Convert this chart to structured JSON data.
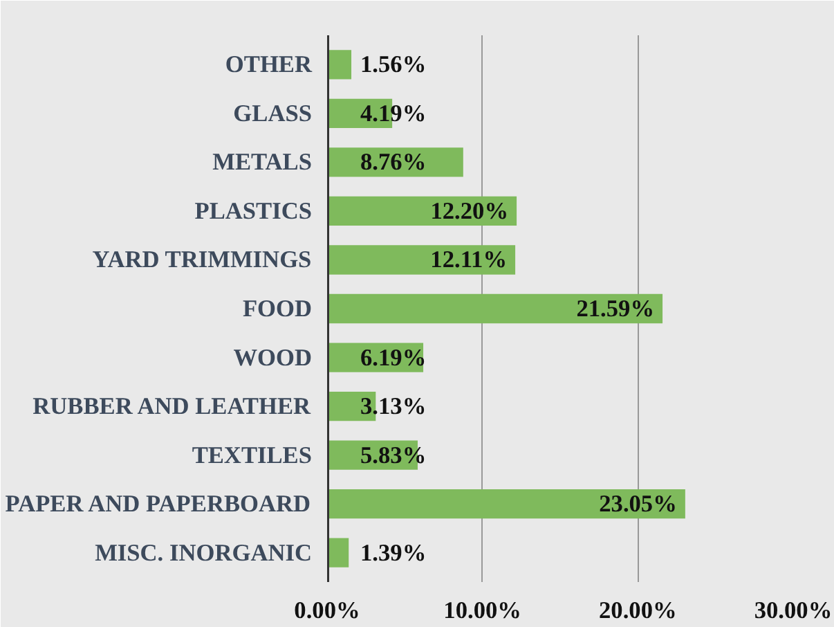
{
  "chart_data": {
    "type": "bar",
    "orientation": "horizontal",
    "categories": [
      "OTHER",
      "GLASS",
      "METALS",
      "PLASTICS",
      "YARD TRIMMINGS",
      "FOOD",
      "WOOD",
      "RUBBER AND LEATHER",
      "TEXTILES",
      "PAPER AND PAPERBOARD",
      "MISC. INORGANIC"
    ],
    "values": [
      1.56,
      4.19,
      8.76,
      12.2,
      12.11,
      21.59,
      6.19,
      3.13,
      5.83,
      23.05,
      1.39
    ],
    "value_labels": [
      "1.56%",
      "4.19%",
      "8.76%",
      "12.20%",
      "12.11%",
      "21.59%",
      "6.19%",
      "3.13%",
      "5.83%",
      "23.05%",
      "1.39%"
    ],
    "color": "#7fba5c",
    "xlim": [
      0,
      30
    ],
    "xticks": [
      {
        "value": 0,
        "label": "0.00%"
      },
      {
        "value": 10,
        "label": "10.00%"
      },
      {
        "value": 20,
        "label": "20.00%"
      },
      {
        "value": 30,
        "label": "30.00%"
      }
    ],
    "grid": "x"
  }
}
